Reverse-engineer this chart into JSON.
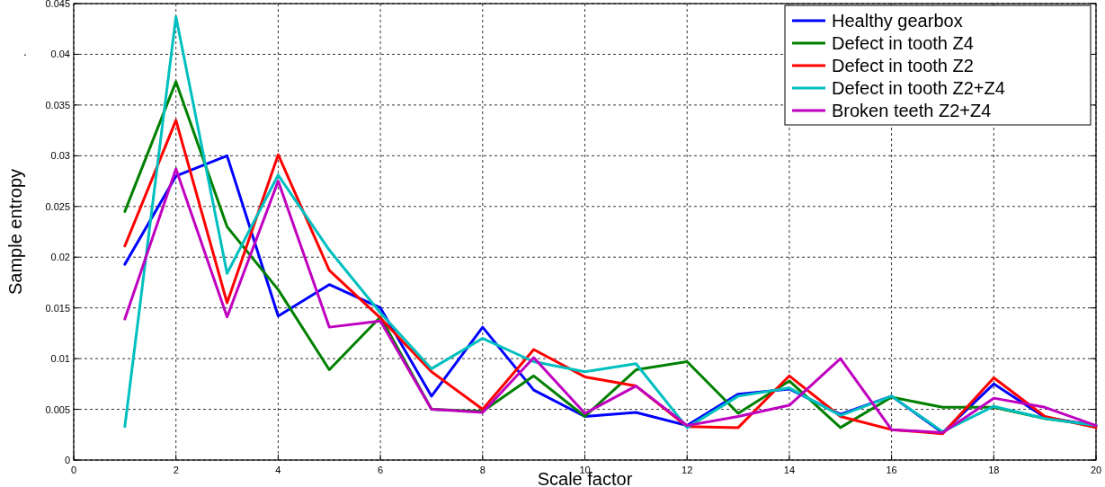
{
  "chart_data": {
    "type": "line",
    "xlabel": "Scale factor",
    "ylabel": "Sample entropy",
    "annotations": [
      "."
    ],
    "x": [
      1,
      2,
      3,
      4,
      5,
      6,
      7,
      8,
      9,
      10,
      11,
      12,
      13,
      14,
      15,
      16,
      17,
      18,
      19,
      20
    ],
    "xlim": [
      0,
      20
    ],
    "xticks": [
      0,
      2,
      4,
      6,
      8,
      10,
      12,
      14,
      16,
      18,
      20
    ],
    "ylim": [
      0,
      0.045
    ],
    "yticks": [
      0,
      0.005,
      0.01,
      0.015,
      0.02,
      0.025,
      0.03,
      0.035,
      0.04,
      0.045
    ],
    "grid": true,
    "legend": "top right",
    "line_style": "solid",
    "marker": "none",
    "series": [
      {
        "name": "Healthy gearbox",
        "color": "#0000ff",
        "values": [
          0.0193,
          0.028,
          0.03,
          0.0142,
          0.0173,
          0.015,
          0.0063,
          0.0131,
          0.0069,
          0.0043,
          0.0047,
          0.0034,
          0.0065,
          0.007,
          0.0045,
          0.0063,
          0.0027,
          0.0075,
          0.0042,
          0.0034
        ]
      },
      {
        "name": "Defect in tooth Z4",
        "color": "#008000",
        "values": [
          0.0245,
          0.0373,
          0.023,
          0.0168,
          0.0089,
          0.0141,
          0.005,
          0.0048,
          0.0083,
          0.0043,
          0.0089,
          0.0097,
          0.0046,
          0.0078,
          0.0032,
          0.0062,
          0.0052,
          0.0052,
          0.0041,
          0.0034
        ]
      },
      {
        "name": "Defect in tooth Z2",
        "color": "#ff0000",
        "values": [
          0.0211,
          0.0335,
          0.0155,
          0.0301,
          0.0187,
          0.014,
          0.0087,
          0.005,
          0.0109,
          0.0082,
          0.0073,
          0.0033,
          0.0032,
          0.0083,
          0.0043,
          0.003,
          0.0026,
          0.0081,
          0.0043,
          0.0032
        ]
      },
      {
        "name": "Defect in tooth Z2+Z4",
        "color": "#00bfbf",
        "values": [
          0.0033,
          0.0437,
          0.0184,
          0.0281,
          0.0207,
          0.0145,
          0.009,
          0.012,
          0.0097,
          0.0087,
          0.0095,
          0.0032,
          0.0063,
          0.0071,
          0.0044,
          0.0063,
          0.0028,
          0.0053,
          0.0041,
          0.0034
        ]
      },
      {
        "name": "Broken teeth Z2+Z4",
        "color": "#bf00bf",
        "values": [
          0.0139,
          0.0287,
          0.0141,
          0.0275,
          0.0131,
          0.0137,
          0.005,
          0.0047,
          0.0101,
          0.0046,
          0.0073,
          0.0034,
          0.0043,
          0.0054,
          0.01,
          0.003,
          0.0027,
          0.0061,
          0.0052,
          0.0034
        ]
      }
    ]
  }
}
